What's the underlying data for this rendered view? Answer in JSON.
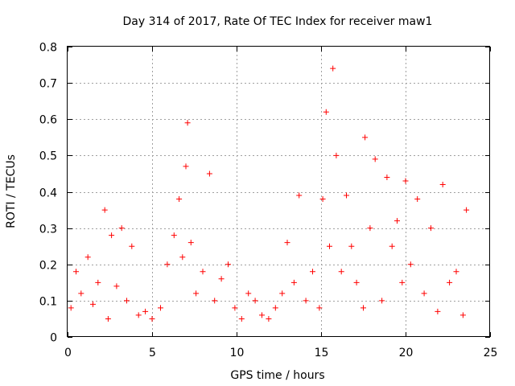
{
  "chart_data": {
    "type": "scatter",
    "title": "Day 314 of 2017, Rate Of TEC Index for receiver maw1",
    "xlabel": "GPS time / hours",
    "ylabel": "ROTI / TECUs",
    "xlim": [
      0,
      25
    ],
    "ylim": [
      0,
      0.8
    ],
    "x_ticks": [
      "0",
      "5",
      "10",
      "15",
      "20",
      "25"
    ],
    "y_ticks": [
      "0",
      "0.1",
      "0.2",
      "0.3",
      "0.4",
      "0.5",
      "0.6",
      "0.7",
      "0.8"
    ],
    "grid": true,
    "marker": "+",
    "color": "#ff0000",
    "series": [
      {
        "name": "ROTI",
        "x": [
          0.2,
          0.5,
          0.8,
          1.2,
          1.5,
          1.8,
          2.2,
          2.4,
          2.6,
          2.9,
          3.2,
          3.5,
          3.8,
          4.2,
          4.6,
          5.0,
          5.5,
          5.9,
          6.3,
          6.6,
          6.8,
          7.0,
          7.1,
          7.3,
          7.6,
          8.0,
          8.4,
          8.7,
          9.1,
          9.5,
          9.9,
          10.3,
          10.7,
          11.1,
          11.5,
          11.9,
          12.3,
          12.7,
          13.0,
          13.4,
          13.7,
          14.1,
          14.5,
          14.9,
          15.1,
          15.3,
          15.5,
          15.7,
          15.9,
          16.2,
          16.5,
          16.8,
          17.1,
          17.5,
          17.6,
          17.9,
          18.2,
          18.6,
          18.9,
          19.2,
          19.5,
          19.8,
          20.0,
          20.3,
          20.7,
          21.1,
          21.5,
          21.9,
          22.2,
          22.6,
          23.0,
          23.4,
          23.6
        ],
        "y": [
          0.08,
          0.18,
          0.12,
          0.22,
          0.09,
          0.15,
          0.35,
          0.05,
          0.28,
          0.14,
          0.3,
          0.1,
          0.25,
          0.06,
          0.07,
          0.05,
          0.08,
          0.2,
          0.28,
          0.38,
          0.22,
          0.47,
          0.59,
          0.26,
          0.12,
          0.18,
          0.45,
          0.1,
          0.16,
          0.2,
          0.08,
          0.05,
          0.12,
          0.1,
          0.06,
          0.05,
          0.08,
          0.12,
          0.26,
          0.15,
          0.39,
          0.1,
          0.18,
          0.08,
          0.38,
          0.62,
          0.25,
          0.74,
          0.5,
          0.18,
          0.39,
          0.25,
          0.15,
          0.08,
          0.55,
          0.3,
          0.49,
          0.1,
          0.44,
          0.25,
          0.32,
          0.15,
          0.43,
          0.2,
          0.38,
          0.12,
          0.3,
          0.07,
          0.42,
          0.15,
          0.18,
          0.06,
          0.35
        ]
      }
    ]
  }
}
